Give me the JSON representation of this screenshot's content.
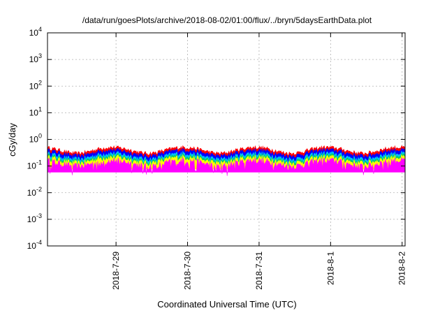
{
  "chart_data": {
    "type": "area",
    "title": "/data/run/goesPlots/archive/2018-08-02/01:00/flux/../bryn/5daysEarthData.plot",
    "xlabel": "Coordinated Universal Time (UTC)",
    "ylabel": "cGy/day",
    "y_scale": "log",
    "ylim": [
      0.0001,
      10000
    ],
    "y_ticks": [
      {
        "base": "10",
        "exp": "-4"
      },
      {
        "base": "10",
        "exp": "-3"
      },
      {
        "base": "10",
        "exp": "-2"
      },
      {
        "base": "10",
        "exp": "-1"
      },
      {
        "base": "10",
        "exp": "0"
      },
      {
        "base": "10",
        "exp": "1"
      },
      {
        "base": "10",
        "exp": "2"
      },
      {
        "base": "10",
        "exp": "3"
      },
      {
        "base": "10",
        "exp": "4"
      }
    ],
    "xlim": [
      "2018-07-28T01:00",
      "2018-08-02T01:00"
    ],
    "x_ticks": [
      "2018-7-29",
      "2018-7-30",
      "2018-7-31",
      "2018-8-1",
      "2018-8-2"
    ],
    "grid": true,
    "series": [
      {
        "color": "#ff0000",
        "level": 0.4
      },
      {
        "color": "#0000ff",
        "level": 0.32
      },
      {
        "color": "#00bfff",
        "level": 0.24
      },
      {
        "color": "#00cc66",
        "level": 0.2
      },
      {
        "color": "#ffff00",
        "level": 0.17
      },
      {
        "color": "#ff00ff",
        "level": 0.13
      }
    ]
  }
}
